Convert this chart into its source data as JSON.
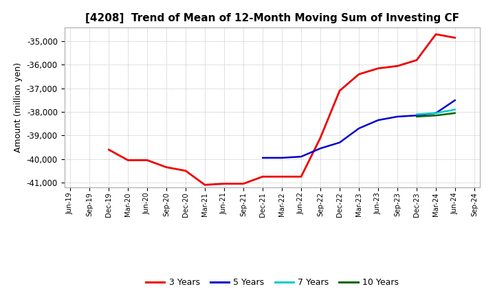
{
  "title": "[4208]  Trend of Mean of 12-Month Moving Sum of Investing CF",
  "ylabel": "Amount (million yen)",
  "ylim": [
    -41200,
    -34400
  ],
  "yticks": [
    -41000,
    -40000,
    -39000,
    -38000,
    -37000,
    -36000,
    -35000
  ],
  "background_color": "#ffffff",
  "series": {
    "3 Years": {
      "color": "#ee0000",
      "linewidth": 2.0,
      "data": [
        [
          "Jun-19",
          null
        ],
        [
          "Sep-19",
          null
        ],
        [
          "Dec-19",
          -39600
        ],
        [
          "Mar-20",
          -40050
        ],
        [
          "Jun-20",
          -40050
        ],
        [
          "Sep-20",
          -40350
        ],
        [
          "Dec-20",
          -40500
        ],
        [
          "Mar-21",
          -41100
        ],
        [
          "Jun-21",
          -41050
        ],
        [
          "Sep-21",
          -41050
        ],
        [
          "Dec-21",
          -40750
        ],
        [
          "Mar-22",
          -40750
        ],
        [
          "Jun-22",
          -40750
        ],
        [
          "Sep-22",
          -39100
        ],
        [
          "Dec-22",
          -37100
        ],
        [
          "Mar-23",
          -36400
        ],
        [
          "Jun-23",
          -36150
        ],
        [
          "Sep-23",
          -36050
        ],
        [
          "Dec-23",
          -35800
        ],
        [
          "Mar-24",
          -34700
        ],
        [
          "Jun-24",
          -34850
        ],
        [
          "Sep-24",
          null
        ]
      ]
    },
    "5 Years": {
      "color": "#0000cc",
      "linewidth": 1.8,
      "data": [
        [
          "Jun-19",
          null
        ],
        [
          "Sep-19",
          null
        ],
        [
          "Dec-19",
          null
        ],
        [
          "Mar-20",
          null
        ],
        [
          "Jun-20",
          null
        ],
        [
          "Sep-20",
          null
        ],
        [
          "Dec-20",
          null
        ],
        [
          "Mar-21",
          null
        ],
        [
          "Jun-21",
          null
        ],
        [
          "Sep-21",
          null
        ],
        [
          "Dec-21",
          -39950
        ],
        [
          "Mar-22",
          -39950
        ],
        [
          "Jun-22",
          -39900
        ],
        [
          "Sep-22",
          -39550
        ],
        [
          "Dec-22",
          -39300
        ],
        [
          "Mar-23",
          -38700
        ],
        [
          "Jun-23",
          -38350
        ],
        [
          "Sep-23",
          -38200
        ],
        [
          "Dec-23",
          -38150
        ],
        [
          "Mar-24",
          -38050
        ],
        [
          "Jun-24",
          -37500
        ],
        [
          "Sep-24",
          null
        ]
      ]
    },
    "7 Years": {
      "color": "#00cccc",
      "linewidth": 1.8,
      "data": [
        [
          "Jun-19",
          null
        ],
        [
          "Sep-19",
          null
        ],
        [
          "Dec-19",
          null
        ],
        [
          "Mar-20",
          null
        ],
        [
          "Jun-20",
          null
        ],
        [
          "Sep-20",
          null
        ],
        [
          "Dec-20",
          null
        ],
        [
          "Mar-21",
          null
        ],
        [
          "Jun-21",
          null
        ],
        [
          "Sep-21",
          null
        ],
        [
          "Dec-21",
          null
        ],
        [
          "Mar-22",
          null
        ],
        [
          "Jun-22",
          null
        ],
        [
          "Sep-22",
          null
        ],
        [
          "Dec-22",
          null
        ],
        [
          "Mar-23",
          null
        ],
        [
          "Jun-23",
          null
        ],
        [
          "Sep-23",
          null
        ],
        [
          "Dec-23",
          -38100
        ],
        [
          "Mar-24",
          -38050
        ],
        [
          "Jun-24",
          -37900
        ],
        [
          "Sep-24",
          null
        ]
      ]
    },
    "10 Years": {
      "color": "#006600",
      "linewidth": 1.8,
      "data": [
        [
          "Jun-19",
          null
        ],
        [
          "Sep-19",
          null
        ],
        [
          "Dec-19",
          null
        ],
        [
          "Mar-20",
          null
        ],
        [
          "Jun-20",
          null
        ],
        [
          "Sep-20",
          null
        ],
        [
          "Dec-20",
          null
        ],
        [
          "Mar-21",
          null
        ],
        [
          "Jun-21",
          null
        ],
        [
          "Sep-21",
          null
        ],
        [
          "Dec-21",
          null
        ],
        [
          "Mar-22",
          null
        ],
        [
          "Jun-22",
          null
        ],
        [
          "Sep-22",
          null
        ],
        [
          "Dec-22",
          null
        ],
        [
          "Mar-23",
          null
        ],
        [
          "Jun-23",
          null
        ],
        [
          "Sep-23",
          null
        ],
        [
          "Dec-23",
          -38200
        ],
        [
          "Mar-24",
          -38150
        ],
        [
          "Jun-24",
          -38050
        ],
        [
          "Sep-24",
          null
        ]
      ]
    }
  },
  "xticks": [
    "Jun-19",
    "Sep-19",
    "Dec-19",
    "Mar-20",
    "Jun-20",
    "Sep-20",
    "Dec-20",
    "Mar-21",
    "Jun-21",
    "Sep-21",
    "Dec-21",
    "Mar-22",
    "Jun-22",
    "Sep-22",
    "Dec-22",
    "Mar-23",
    "Jun-23",
    "Sep-23",
    "Dec-23",
    "Mar-24",
    "Jun-24",
    "Sep-24"
  ],
  "legend_entries": [
    "3 Years",
    "5 Years",
    "7 Years",
    "10 Years"
  ],
  "legend_colors": [
    "#ee0000",
    "#0000cc",
    "#00cccc",
    "#006600"
  ]
}
